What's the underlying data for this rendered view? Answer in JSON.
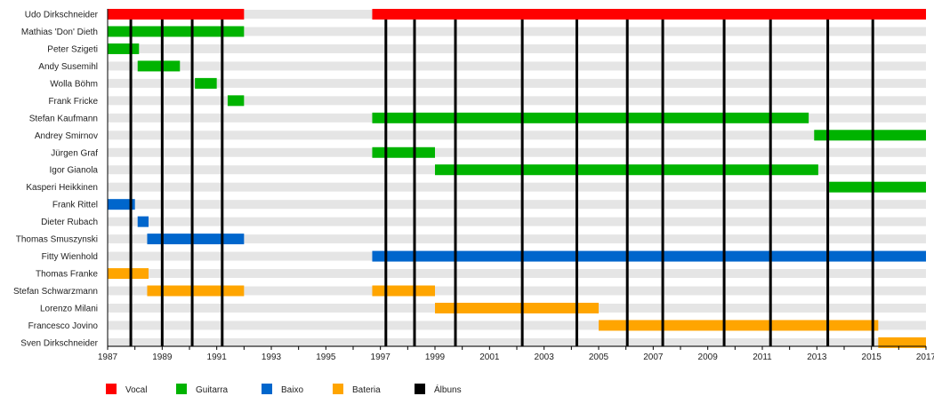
{
  "chart_data": {
    "type": "timeline",
    "title": "",
    "xlim": [
      1987,
      2017
    ],
    "x_ticks": [
      1987,
      1989,
      1991,
      1993,
      1995,
      1997,
      1999,
      2001,
      2003,
      2005,
      2007,
      2009,
      2011,
      2013,
      2015,
      2017
    ],
    "colors": {
      "Vocal": "#ff0000",
      "Guitarra": "#00b300",
      "Baixo": "#0066cc",
      "Bateria": "#ffa500",
      "Álbuns": "#000000"
    },
    "legend": [
      "Vocal",
      "Guitarra",
      "Baixo",
      "Bateria",
      "Álbuns"
    ],
    "legend_position": "bottom",
    "albums": [
      1987.85,
      1989.0,
      1990.1,
      1991.2,
      1997.2,
      1998.25,
      1999.75,
      2002.2,
      2004.2,
      2006.05,
      2007.35,
      2009.6,
      2011.3,
      2013.4,
      2015.05
    ],
    "members": [
      {
        "name": "Udo Dirkschneider",
        "role": "Vocal",
        "periods": [
          [
            1987,
            1992
          ],
          [
            1996.7,
            2017
          ]
        ]
      },
      {
        "name": "Mathias 'Don' Dieth",
        "role": "Guitarra",
        "periods": [
          [
            1987,
            1992
          ]
        ]
      },
      {
        "name": "Peter Szigeti",
        "role": "Guitarra",
        "periods": [
          [
            1987,
            1988.15
          ]
        ]
      },
      {
        "name": "Andy Susemihl",
        "role": "Guitarra",
        "periods": [
          [
            1988.1,
            1989.65
          ]
        ]
      },
      {
        "name": "Wolla Böhm",
        "role": "Guitarra",
        "periods": [
          [
            1990.2,
            1991.0
          ]
        ]
      },
      {
        "name": "Frank Fricke",
        "role": "Guitarra",
        "periods": [
          [
            1991.4,
            1992
          ]
        ]
      },
      {
        "name": "Stefan Kaufmann",
        "role": "Guitarra",
        "periods": [
          [
            1996.7,
            2012.7
          ]
        ]
      },
      {
        "name": "Andrey Smirnov",
        "role": "Guitarra",
        "periods": [
          [
            2012.9,
            2017
          ]
        ]
      },
      {
        "name": "Jürgen Graf",
        "role": "Guitarra",
        "periods": [
          [
            1996.7,
            1999
          ]
        ]
      },
      {
        "name": "Igor Gianola",
        "role": "Guitarra",
        "periods": [
          [
            1999,
            2013.05
          ]
        ]
      },
      {
        "name": "Kasperi Heikkinen",
        "role": "Guitarra",
        "periods": [
          [
            2013.45,
            2017
          ]
        ]
      },
      {
        "name": "Frank Rittel",
        "role": "Baixo",
        "periods": [
          [
            1987,
            1988
          ]
        ]
      },
      {
        "name": "Dieter Rubach",
        "role": "Baixo",
        "periods": [
          [
            1988.1,
            1988.5
          ]
        ]
      },
      {
        "name": "Thomas Smuszynski",
        "role": "Baixo",
        "periods": [
          [
            1988.45,
            1992
          ]
        ]
      },
      {
        "name": "Fitty Wienhold",
        "role": "Baixo",
        "periods": [
          [
            1996.7,
            2017
          ]
        ]
      },
      {
        "name": "Thomas Franke",
        "role": "Bateria",
        "periods": [
          [
            1987,
            1988.5
          ]
        ]
      },
      {
        "name": "Stefan Schwarzmann",
        "role": "Bateria",
        "periods": [
          [
            1988.45,
            1992
          ],
          [
            1996.7,
            1999
          ]
        ]
      },
      {
        "name": "Lorenzo Milani",
        "role": "Bateria",
        "periods": [
          [
            1999,
            2005
          ]
        ]
      },
      {
        "name": "Francesco Jovino",
        "role": "Bateria",
        "periods": [
          [
            2005,
            2015.25
          ]
        ]
      },
      {
        "name": "Sven Dirkschneider",
        "role": "Bateria",
        "periods": [
          [
            2015.25,
            2017
          ]
        ]
      }
    ]
  }
}
